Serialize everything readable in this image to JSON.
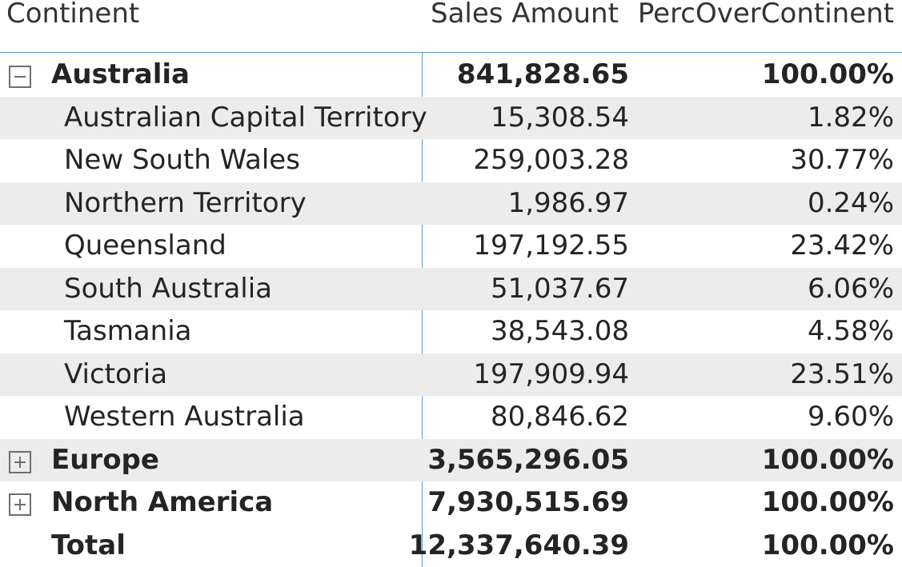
{
  "columns": {
    "continent": "Continent",
    "sales": "Sales Amount",
    "perc": "PercOverContinent"
  },
  "rows": [
    {
      "kind": "top",
      "toggle": "collapse",
      "name": "Australia",
      "sales": "841,828.65",
      "perc": "100.00%"
    },
    {
      "kind": "child",
      "name": "Australian Capital Territory",
      "sales": "15,308.54",
      "perc": "1.82%"
    },
    {
      "kind": "child",
      "name": "New South Wales",
      "sales": "259,003.28",
      "perc": "30.77%"
    },
    {
      "kind": "child",
      "name": "Northern Territory",
      "sales": "1,986.97",
      "perc": "0.24%"
    },
    {
      "kind": "child",
      "name": "Queensland",
      "sales": "197,192.55",
      "perc": "23.42%"
    },
    {
      "kind": "child",
      "name": "South Australia",
      "sales": "51,037.67",
      "perc": "6.06%"
    },
    {
      "kind": "child",
      "name": "Tasmania",
      "sales": "38,543.08",
      "perc": "4.58%"
    },
    {
      "kind": "child",
      "name": "Victoria",
      "sales": "197,909.94",
      "perc": "23.51%"
    },
    {
      "kind": "child",
      "name": "Western Australia",
      "sales": "80,846.62",
      "perc": "9.60%"
    },
    {
      "kind": "top",
      "toggle": "expand",
      "name": "Europe",
      "sales": "3,565,296.05",
      "perc": "100.00%"
    },
    {
      "kind": "top",
      "toggle": "expand",
      "name": "North America",
      "sales": "7,930,515.69",
      "perc": "100.00%"
    },
    {
      "kind": "top",
      "toggle": "",
      "name": "Total",
      "sales": "12,337,640.39",
      "perc": "100.00%"
    }
  ],
  "icons": {
    "collapse": "collapse-icon",
    "expand": "expand-icon"
  },
  "colors": {
    "header_line": "#5b9bd5",
    "row_shade": "#ececec",
    "text": "#252423",
    "toggle_border": "#6e6e6e"
  }
}
